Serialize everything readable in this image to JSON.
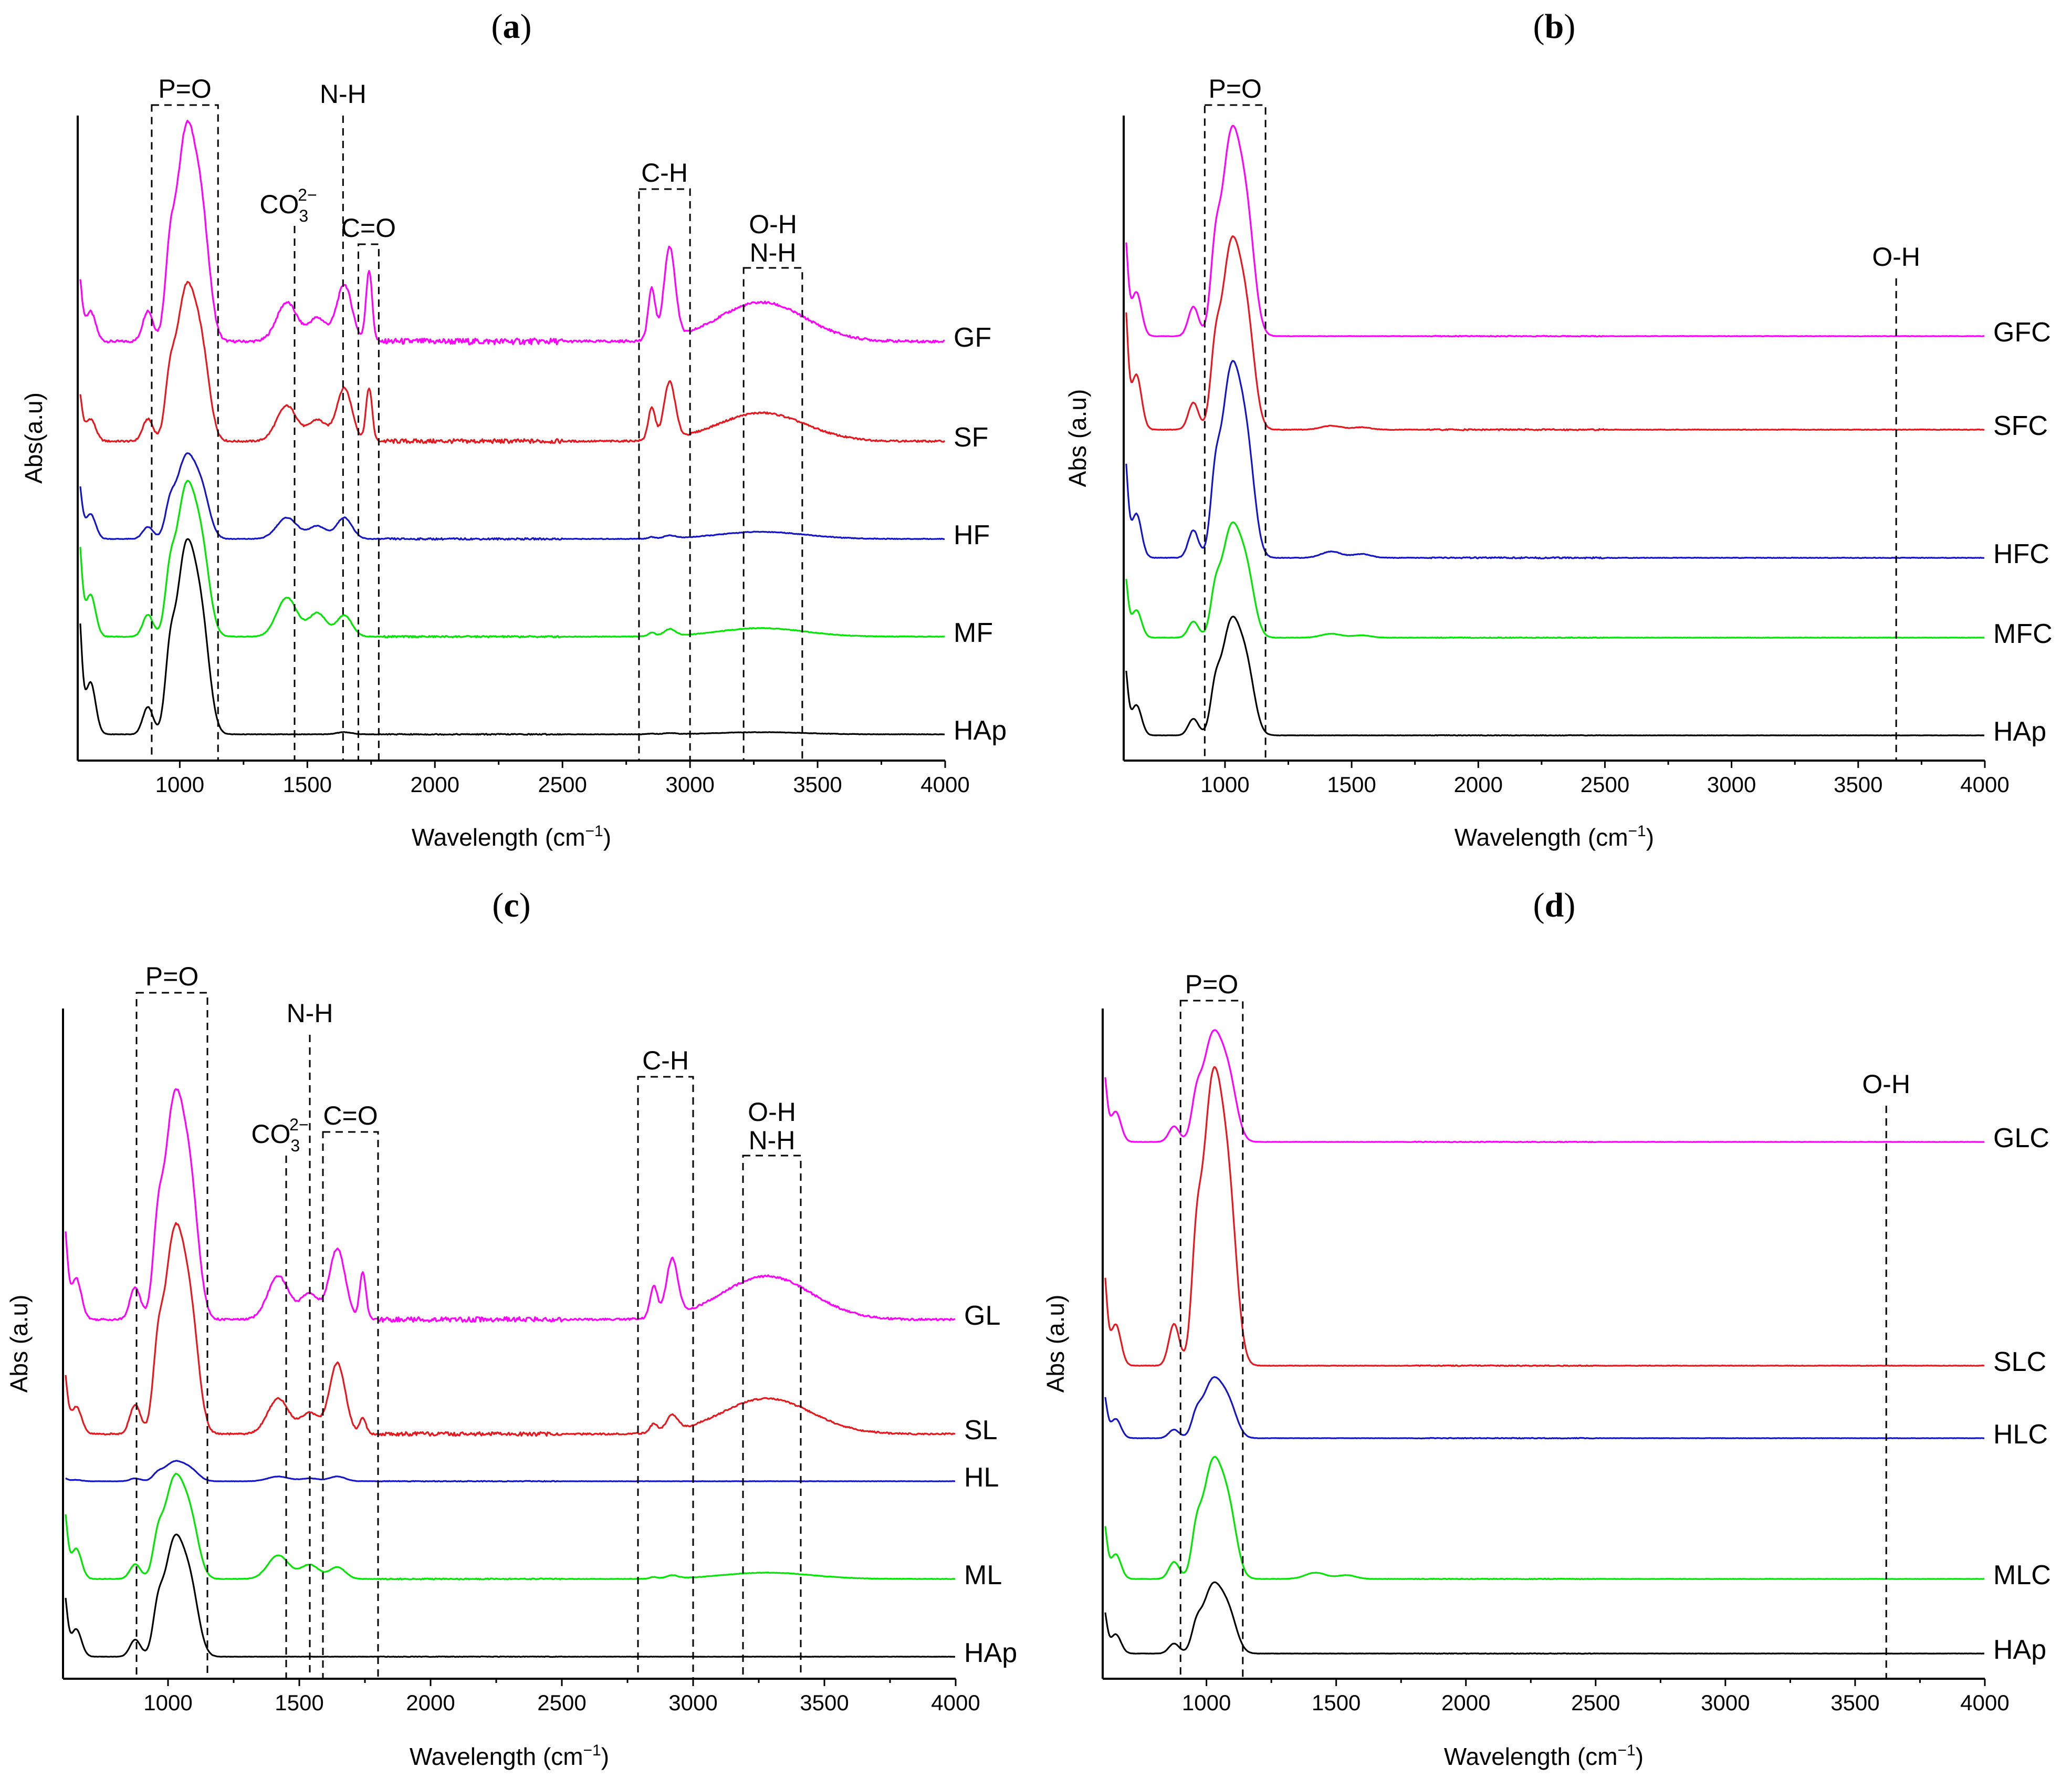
{
  "chart_data": [
    {
      "id": "a",
      "panel_label": "a",
      "type": "line",
      "xlabel": "Wavelength (cm",
      "xlabel_sup": "−1",
      "xlabel_close": ")",
      "ylabel": "Abs(a.u)",
      "xlim": [
        600,
        4000
      ],
      "xticks": [
        1000,
        1500,
        2000,
        2500,
        3000,
        3500,
        4000
      ],
      "series": [
        {
          "name": "GF",
          "color": "#ff00ff",
          "baseline": 4.3,
          "peak": 3.6,
          "p1430": 0.55,
          "p1650": 0.8,
          "p1740": 1.0,
          "ch": 1.6,
          "oh": 0.55,
          "vibr": 0.35,
          "lowend": 1.2,
          "tail": 0.0
        },
        {
          "name": "SF",
          "color": "#e8171e",
          "baseline": 3.1,
          "peak": 2.6,
          "p1430": 0.5,
          "p1650": 0.75,
          "p1740": 0.75,
          "ch": 1.0,
          "oh": 0.4,
          "vibr": 0.25,
          "lowend": 0.9,
          "tail": 0.05
        },
        {
          "name": "HF",
          "color": "#1515c8",
          "baseline": 2.3,
          "peak": 1.4,
          "p1430": 0.3,
          "p1650": 0.3,
          "p1740": 0.0,
          "ch": 0.05,
          "oh": 0.1,
          "vibr": 0.1,
          "lowend": 1.0,
          "tail": 0.0
        },
        {
          "name": "MF",
          "color": "#00e600",
          "baseline": 1.25,
          "peak": 2.55,
          "p1430": 0.55,
          "p1650": 0.3,
          "p1740": 0.0,
          "ch": 0.12,
          "oh": 0.12,
          "vibr": 0.1,
          "lowend": 1.7,
          "tail": 0.0
        },
        {
          "name": "HAp",
          "color": "#000000",
          "baseline": 0.0,
          "peak": 3.2,
          "p1430": 0.0,
          "p1650": 0.03,
          "p1740": 0.0,
          "ch": 0.02,
          "oh": 0.03,
          "vibr": 0.06,
          "lowend": 2.1,
          "tail": 0.0
        }
      ],
      "annotations": [
        {
          "text": "P=O",
          "kind": "box",
          "x1": 890,
          "x2": 1150
        },
        {
          "text": "N-H",
          "kind": "line",
          "x": 1640
        },
        {
          "text": "CO",
          "sub": "3",
          "sup": "2−",
          "kind": "line",
          "x": 1450
        },
        {
          "text": "C=O",
          "kind": "box",
          "x1": 1700,
          "x2": 1780
        },
        {
          "text": "C-H",
          "kind": "box",
          "x1": 2800,
          "x2": 3000
        },
        {
          "text": "O-H",
          "text2": "N-H",
          "kind": "box",
          "x1": 3210,
          "x2": 3440
        }
      ]
    },
    {
      "id": "b",
      "panel_label": "b",
      "type": "line",
      "xlabel": "Wavelength (cm",
      "xlabel_sup": "−1",
      "xlabel_close": ")",
      "ylabel": "Abs (a.u)",
      "xlim": [
        600,
        4000
      ],
      "xticks": [
        1000,
        1500,
        2000,
        2500,
        3000,
        3500,
        4000
      ],
      "series": [
        {
          "name": "GFC",
          "color": "#ff00ff",
          "baseline": 4.05,
          "peak": 3.1,
          "p1430": 0.0,
          "p1650": 0.0,
          "p1740": 0.0,
          "ch": 0.0,
          "oh": 0.0,
          "vibr": 0.05,
          "lowend": 1.6,
          "tail": 0.0
        },
        {
          "name": "SFC",
          "color": "#e8171e",
          "baseline": 3.05,
          "peak": 2.85,
          "p1430": 0.05,
          "p1650": 0.0,
          "p1740": 0.0,
          "ch": 0.0,
          "oh": 0.0,
          "vibr": 0.07,
          "lowend": 2.0,
          "tail": 0.0
        },
        {
          "name": "HFC",
          "color": "#1515c8",
          "baseline": 1.85,
          "peak": 2.9,
          "p1430": 0.08,
          "p1650": 0.0,
          "p1740": 0.0,
          "ch": 0.0,
          "oh": 0.0,
          "vibr": 0.07,
          "lowend": 1.6,
          "tail": 0.0
        },
        {
          "name": "MFC",
          "color": "#00e600",
          "baseline": 1.05,
          "peak": 1.7,
          "p1430": 0.05,
          "p1650": 0.0,
          "p1740": 0.0,
          "ch": 0.0,
          "oh": 0.0,
          "vibr": 0.04,
          "lowend": 1.0,
          "tail": 0.0
        },
        {
          "name": "HAp",
          "color": "#000000",
          "baseline": 0.0,
          "peak": 1.75,
          "p1430": 0.0,
          "p1650": 0.0,
          "p1740": 0.0,
          "ch": 0.0,
          "oh": 0.0,
          "vibr": 0.03,
          "lowend": 1.1,
          "tail": 0.0
        }
      ],
      "annotations": [
        {
          "text": "P=O",
          "kind": "box",
          "x1": 920,
          "x2": 1160
        },
        {
          "text": "O-H",
          "kind": "line",
          "x": 3650
        }
      ]
    },
    {
      "id": "c",
      "panel_label": "c",
      "type": "line",
      "xlabel": "Wavelength (cm",
      "xlabel_sup": "−1",
      "xlabel_close": ")",
      "ylabel": "Abs (a.u)",
      "xlim": [
        600,
        4000
      ],
      "xticks": [
        1000,
        1500,
        2000,
        2500,
        3000,
        3500,
        4000
      ],
      "series": [
        {
          "name": "GL",
          "color": "#ff00ff",
          "baseline": 3.0,
          "peak": 3.4,
          "p1430": 0.55,
          "p1650": 0.9,
          "p1740": 0.6,
          "ch": 0.9,
          "oh": 0.55,
          "vibr": 0.25,
          "lowend": 1.5,
          "tail": 0.0
        },
        {
          "name": "SL",
          "color": "#e8171e",
          "baseline": 1.65,
          "peak": 3.1,
          "p1430": 0.45,
          "p1650": 0.9,
          "p1740": 0.2,
          "ch": 0.25,
          "oh": 0.45,
          "vibr": 0.2,
          "lowend": 1.0,
          "tail": 0.0
        },
        {
          "name": "HL",
          "color": "#1515c8",
          "baseline": 1.25,
          "peak": 0.3,
          "p1430": 0.06,
          "p1650": 0.06,
          "p1740": 0.0,
          "ch": 0.0,
          "oh": 0.0,
          "vibr": 0.04,
          "lowend": 0.05,
          "tail": 0.0
        },
        {
          "name": "ML",
          "color": "#00e600",
          "baseline": 0.55,
          "peak": 1.55,
          "p1430": 0.3,
          "p1650": 0.15,
          "p1740": 0.0,
          "ch": 0.05,
          "oh": 0.08,
          "vibr": 0.06,
          "lowend": 1.1,
          "tail": 0.0
        },
        {
          "name": "HAp",
          "color": "#000000",
          "baseline": 0.0,
          "peak": 1.8,
          "p1430": 0.0,
          "p1650": 0.0,
          "p1740": 0.0,
          "ch": 0.0,
          "oh": 0.0,
          "vibr": 0.03,
          "lowend": 1.0,
          "tail": 0.0
        }
      ],
      "annotations": [
        {
          "text": "P=O",
          "kind": "box",
          "x1": 880,
          "x2": 1150
        },
        {
          "text": "N-H",
          "kind": "line",
          "x": 1540
        },
        {
          "text": "CO",
          "sub": "3",
          "sup": "2−",
          "kind": "line",
          "x": 1450
        },
        {
          "text": "C=O",
          "kind": "box",
          "x1": 1590,
          "x2": 1800
        },
        {
          "text": "C-H",
          "kind": "box",
          "x1": 2790,
          "x2": 3000
        },
        {
          "text": "O-H",
          "text2": "N-H",
          "kind": "box",
          "x1": 3190,
          "x2": 3410
        }
      ]
    },
    {
      "id": "d",
      "panel_label": "d",
      "type": "line",
      "xlabel": "Wavelength (cm",
      "xlabel_sup": "−1",
      "xlabel_close": ")",
      "ylabel": "Abs (a.u)",
      "xlim": [
        600,
        4000
      ],
      "xticks": [
        1000,
        1500,
        2000,
        2500,
        3000,
        3500,
        4000
      ],
      "series": [
        {
          "name": "GLC",
          "color": "#ff00ff",
          "baseline": 3.7,
          "peak": 1.65,
          "p1430": 0.0,
          "p1650": 0.0,
          "p1740": 0.0,
          "ch": 0.0,
          "oh": 0.0,
          "vibr": 0.04,
          "lowend": 1.1,
          "tail": 0.0
        },
        {
          "name": "SLC",
          "color": "#e8171e",
          "baseline": 2.05,
          "peak": 4.4,
          "p1430": 0.0,
          "p1650": 0.0,
          "p1740": 0.0,
          "ch": 0.0,
          "oh": 0.0,
          "vibr": 0.05,
          "lowend": 1.5,
          "tail": 0.0
        },
        {
          "name": "HLC",
          "color": "#1515c8",
          "baseline": 1.6,
          "peak": 0.9,
          "p1430": 0.0,
          "p1650": 0.0,
          "p1740": 0.0,
          "ch": 0.0,
          "oh": 0.0,
          "vibr": 0.04,
          "lowend": 0.7,
          "tail": 0.0
        },
        {
          "name": "MLC",
          "color": "#00e600",
          "baseline": 0.6,
          "peak": 1.8,
          "p1430": 0.08,
          "p1650": 0.0,
          "p1740": 0.0,
          "ch": 0.0,
          "oh": 0.0,
          "vibr": 0.04,
          "lowend": 0.9,
          "tail": 0.0
        },
        {
          "name": "HAp",
          "color": "#000000",
          "baseline": 0.0,
          "peak": 1.05,
          "p1430": 0.0,
          "p1650": 0.0,
          "p1740": 0.0,
          "ch": 0.0,
          "oh": 0.0,
          "vibr": 0.03,
          "lowend": 0.7,
          "tail": 0.0
        }
      ],
      "annotations": [
        {
          "text": "P=O",
          "kind": "box",
          "x1": 900,
          "x2": 1140
        },
        {
          "text": "O-H",
          "kind": "line",
          "x": 3620
        }
      ]
    }
  ]
}
